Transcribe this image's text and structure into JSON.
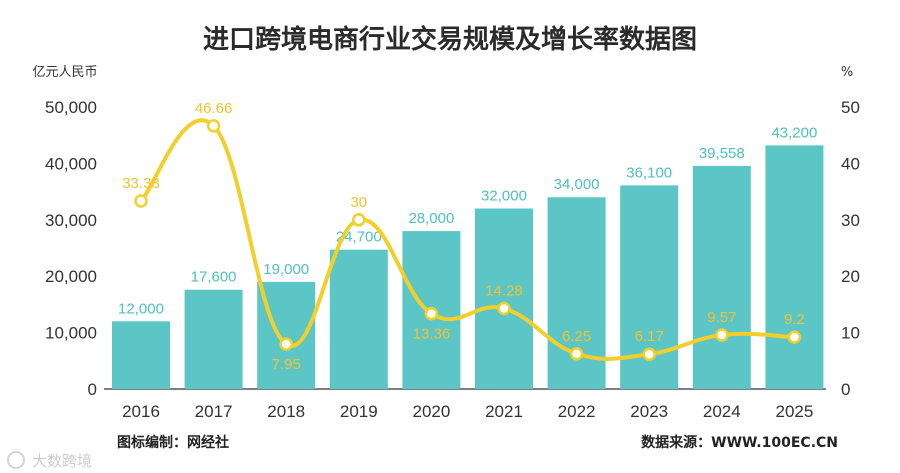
{
  "chart_data": {
    "type": "bar",
    "title": "进口跨境电商行业交易规模及增长率数据图",
    "y_left_unit": "亿元人民币",
    "y_right_unit": "%",
    "categories": [
      "2016",
      "2017",
      "2018",
      "2019",
      "2020",
      "2021",
      "2022",
      "2023",
      "2024",
      "2025"
    ],
    "series": [
      {
        "type": "bar",
        "axis": "left",
        "values": [
          12000,
          17600,
          19000,
          24700,
          28000,
          32000,
          34000,
          36100,
          39558,
          43200
        ],
        "labels": [
          "12,000",
          "17,600",
          "19,000",
          "24,700",
          "28,000",
          "32,000",
          "34,000",
          "36,100",
          "39,558",
          "43,200"
        ],
        "color": "#5cc6c6"
      },
      {
        "type": "line",
        "axis": "right",
        "values": [
          33.33,
          46.66,
          7.95,
          30,
          13.36,
          14.28,
          6.25,
          6.17,
          9.57,
          9.2
        ],
        "labels": [
          "33.33",
          "46.66",
          "7.95",
          "30",
          "13.36",
          "14.28",
          "6.25",
          "6.17",
          "9.57",
          "9.2"
        ],
        "color": "#f2cf2a"
      }
    ],
    "y_left": {
      "min": 0,
      "max": 50000,
      "ticks": [
        "0",
        "10,000",
        "20,000",
        "30,000",
        "40,000",
        "50,000"
      ],
      "tick_values": [
        0,
        10000,
        20000,
        30000,
        40000,
        50000
      ]
    },
    "y_right": {
      "min": 0,
      "max": 50,
      "ticks": [
        "0",
        "10",
        "20",
        "30",
        "40",
        "50"
      ],
      "tick_values": [
        0,
        10,
        20,
        30,
        40,
        50
      ]
    },
    "grid": false,
    "legend": "none"
  },
  "footer": {
    "left": "图标编制：网经社",
    "right": "数据来源：WWW.100EC.CN"
  },
  "watermark": "大数跨境"
}
